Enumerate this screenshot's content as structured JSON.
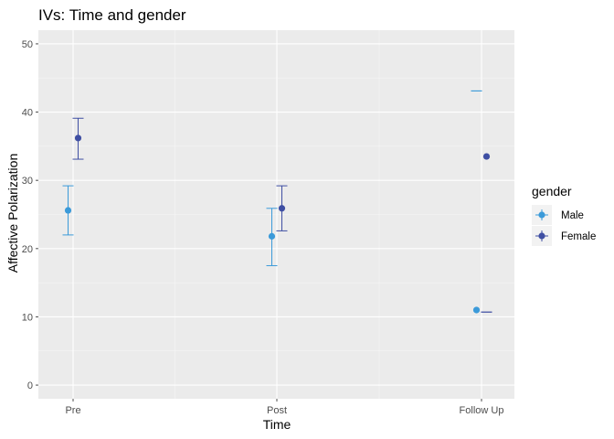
{
  "chart_data": {
    "type": "scatter",
    "title": "IVs: Time and gender",
    "xlabel": "Time",
    "ylabel": "Affective Polarization",
    "categories": [
      "Pre",
      "Post",
      "Follow Up"
    ],
    "ylim": [
      -2,
      52
    ],
    "yticks": [
      0,
      10,
      20,
      30,
      40,
      50
    ],
    "grid": true,
    "legend_title": "gender",
    "legend_position": "right",
    "series": [
      {
        "name": "Male",
        "color": "#3b9ad9",
        "points": [
          {
            "category": "Pre",
            "mean": 25.6,
            "lower": 22.0,
            "upper": 29.2
          },
          {
            "category": "Post",
            "mean": 21.8,
            "lower": 17.5,
            "upper": 25.9
          },
          {
            "category": "Follow Up",
            "mean": 11.0,
            "lower": 43.1,
            "upper": 43.1
          }
        ]
      },
      {
        "name": "Female",
        "color": "#3f4fa3",
        "points": [
          {
            "category": "Pre",
            "mean": 36.2,
            "lower": 33.1,
            "upper": 39.1
          },
          {
            "category": "Post",
            "mean": 25.9,
            "lower": 22.6,
            "upper": 29.2
          },
          {
            "category": "Follow Up",
            "mean": 33.5,
            "lower": 10.7,
            "upper": 10.7
          }
        ]
      }
    ]
  }
}
